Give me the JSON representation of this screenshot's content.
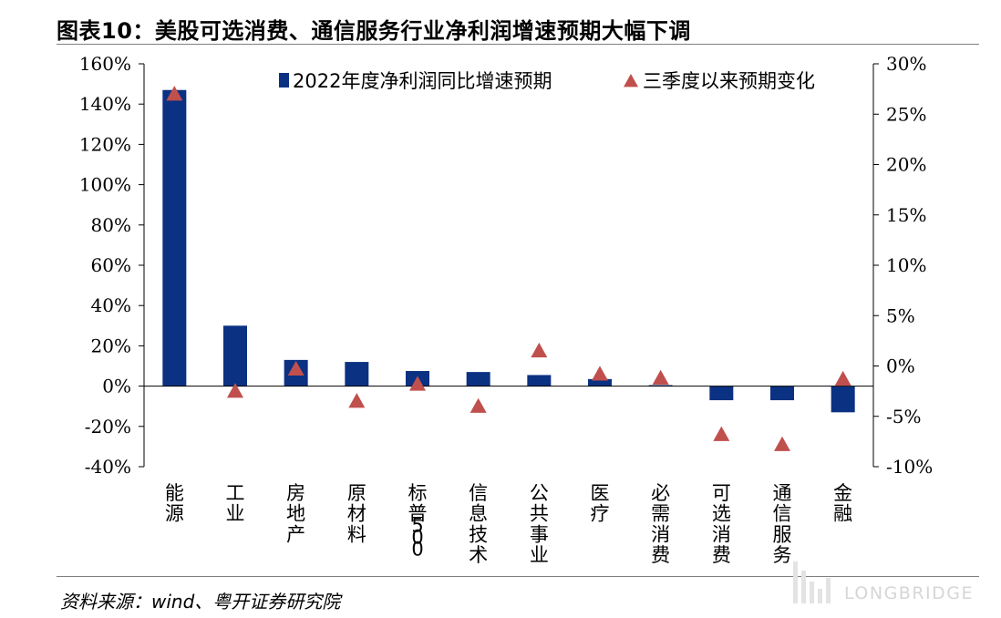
{
  "title": "图表10：美股可选消费、通信服务行业净利润增速预期大幅下调",
  "source": "资料来源：wind、粤开证券研究院",
  "watermark": "LONGBRIDGE",
  "colors": {
    "bar": "#0b3182",
    "marker": "#c0504d"
  },
  "chart_data": {
    "type": "bar",
    "categories": [
      "能源",
      "工业",
      "房地产",
      "原材料",
      "标普500",
      "信息技术",
      "公共事业",
      "医疗",
      "必需消费",
      "可选消费",
      "通信服务",
      "金融"
    ],
    "series": [
      {
        "name": "2022年度净利润同比增速预期",
        "type": "bar",
        "axis": "left",
        "values": [
          147,
          30,
          13,
          12,
          7.5,
          7,
          5.5,
          3.5,
          0.5,
          -7,
          -7,
          -13
        ]
      },
      {
        "name": "三季度以来预期变化",
        "type": "scatter",
        "marker": "triangle",
        "axis": "right",
        "values": [
          27,
          -2.5,
          -0.3,
          -3.5,
          -1.8,
          -4,
          1.5,
          -0.8,
          -1.2,
          -6.8,
          -7.8,
          -1.3
        ]
      }
    ],
    "left_axis": {
      "min": -40,
      "max": 160,
      "step": 20,
      "ticks": [
        "160%",
        "140%",
        "120%",
        "100%",
        "80%",
        "60%",
        "40%",
        "20%",
        "0%",
        "-20%",
        "-40%"
      ]
    },
    "right_axis": {
      "min": -10,
      "max": 30,
      "step": 5,
      "ticks": [
        "30%",
        "25%",
        "20%",
        "15%",
        "10%",
        "5%",
        "0%",
        "-5%",
        "-10%"
      ]
    },
    "legend_position": "top"
  }
}
